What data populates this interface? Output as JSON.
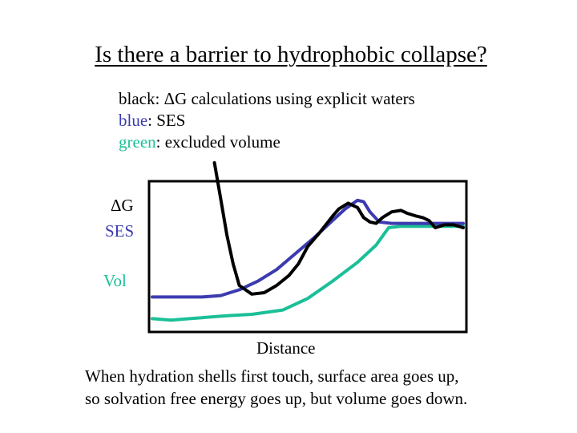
{
  "title": "Is there a barrier to hydrophobic collapse?",
  "legend": [
    {
      "key": "black",
      "sep": ": ",
      "text": "ΔG calculations using explicit waters",
      "color": "#000000"
    },
    {
      "key": "blue",
      "sep": ": ",
      "text": "SES",
      "color": "#3b3bb0"
    },
    {
      "key": "green",
      "sep": ": ",
      "text": "excluded volume",
      "color": "#1bbf98"
    }
  ],
  "caption": [
    "When hydration shells first touch, surface area goes up,",
    "so solvation free energy goes up, but volume goes down."
  ],
  "chart_data": {
    "type": "line",
    "xlabel": "Distance",
    "y_series_labels": [
      {
        "text": "ΔG",
        "color": "#000000"
      },
      {
        "text": "SES",
        "color": "#3b3bb0"
      },
      {
        "text": "Vol",
        "color": "#1bbf98"
      }
    ],
    "xlim": [
      0,
      100
    ],
    "ylim": [
      0,
      100
    ],
    "axis_ticks": false,
    "grid": false,
    "series": [
      {
        "key": "black",
        "color": "#000000",
        "x": [
          20,
          22,
          24,
          26,
          28,
          32,
          36,
          40,
          44,
          47,
          50,
          54,
          58,
          60,
          63,
          66,
          68,
          70,
          72,
          74,
          77,
          80,
          82,
          85,
          87,
          89,
          91,
          94,
          97,
          100
        ],
        "y": [
          115,
          90,
          65,
          45,
          30,
          24,
          25,
          30,
          37,
          45,
          57,
          67,
          78,
          83,
          87,
          84,
          77,
          74,
          73,
          77,
          81,
          82,
          80,
          78,
          77,
          75,
          70,
          72,
          72,
          70
        ]
      },
      {
        "key": "blue",
        "color": "#3b3bb0",
        "x": [
          0,
          8,
          16,
          22,
          28,
          34,
          40,
          46,
          52,
          58,
          62,
          66,
          68,
          70,
          73,
          77,
          80,
          100
        ],
        "y": [
          22,
          22,
          22,
          23,
          27,
          33,
          41,
          52,
          63,
          75,
          83,
          89,
          88,
          81,
          74,
          73,
          73,
          73
        ]
      },
      {
        "key": "green",
        "color": "#1bbf98",
        "x": [
          0,
          6,
          12,
          24,
          32,
          42,
          50,
          58,
          66,
          72,
          76,
          80,
          100
        ],
        "y": [
          7,
          6,
          7,
          9,
          10,
          13,
          21,
          33,
          46,
          58,
          70,
          71,
          71
        ]
      }
    ]
  }
}
